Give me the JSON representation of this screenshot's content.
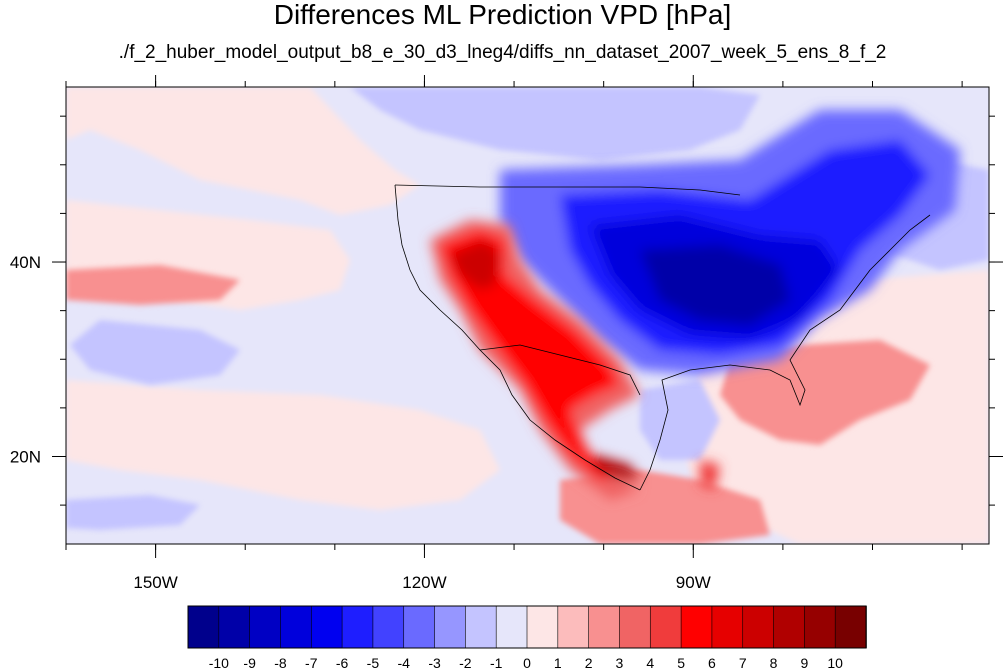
{
  "title": "Differences ML Prediction VPD [hPa]",
  "subtitle": "./f_2_huber_model_output_b8_e_30_d3_lneg4/diffs_nn_dataset_2007_week_5_ens_8_f_2",
  "map": {
    "lon_range": [
      -160,
      -57
    ],
    "lat_range": [
      11,
      58
    ],
    "lon_ticks": [
      {
        "value": -150,
        "label": "150W"
      },
      {
        "value": -120,
        "label": "120W"
      },
      {
        "value": -90,
        "label": "90W"
      }
    ],
    "lat_ticks": [
      {
        "value": 40,
        "label": "40N"
      },
      {
        "value": 20,
        "label": "20N"
      }
    ]
  },
  "colorbar": {
    "labels": [
      "-10",
      "-9",
      "-8",
      "-7",
      "-6",
      "-5",
      "-4",
      "-3",
      "-2",
      "-1",
      "0",
      "1",
      "2",
      "3",
      "4",
      "5",
      "6",
      "7",
      "8",
      "9",
      "10"
    ],
    "colors": [
      "#00008c",
      "#0000a8",
      "#0000c4",
      "#0000dc",
      "#0000f0",
      "#1e1eff",
      "#4242ff",
      "#6a6aff",
      "#9696ff",
      "#c4c4ff",
      "#e6e6fa",
      "#fde6e6",
      "#fcbcbc",
      "#f89090",
      "#f06464",
      "#f03c3c",
      "#ff0000",
      "#e60000",
      "#cc0000",
      "#b00000",
      "#960000",
      "#780000"
    ]
  }
}
